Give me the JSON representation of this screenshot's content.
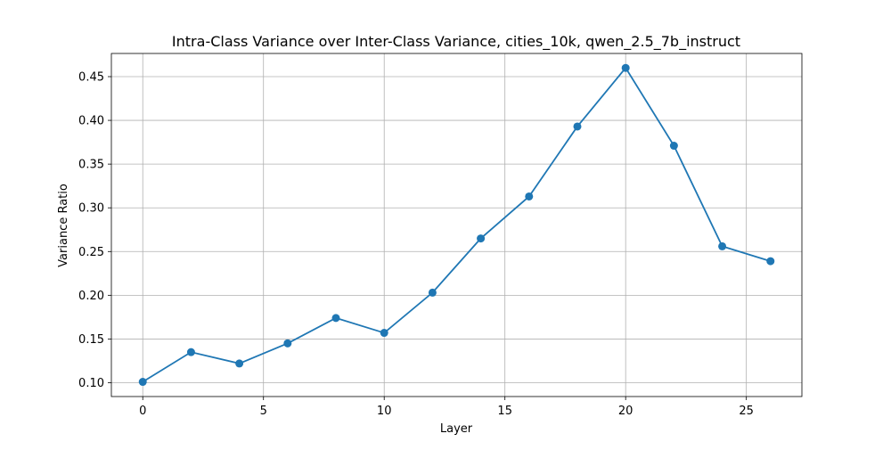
{
  "chart_data": {
    "type": "line",
    "title": "Intra-Class Variance over Inter-Class Variance, cities_10k, qwen_2.5_7b_instruct",
    "xlabel": "Layer",
    "ylabel": "Variance Ratio",
    "xlim": [
      -1.3,
      27.3
    ],
    "ylim": [
      0.0842,
      0.4765
    ],
    "xticks": [
      0,
      5,
      10,
      15,
      20,
      25
    ],
    "yticks": [
      0.1,
      0.15,
      0.2,
      0.25,
      0.3,
      0.35,
      0.4,
      0.45
    ],
    "ytick_labels": [
      "0.10",
      "0.15",
      "0.20",
      "0.25",
      "0.30",
      "0.35",
      "0.40",
      "0.45"
    ],
    "grid": true,
    "series": [
      {
        "color": "#1f77b4",
        "marker": "circle",
        "x": [
          0,
          2,
          4,
          6,
          8,
          10,
          12,
          14,
          16,
          18,
          20,
          22,
          24,
          26
        ],
        "y": [
          0.101,
          0.135,
          0.122,
          0.145,
          0.174,
          0.157,
          0.203,
          0.265,
          0.313,
          0.393,
          0.46,
          0.371,
          0.256,
          0.239
        ]
      }
    ]
  }
}
